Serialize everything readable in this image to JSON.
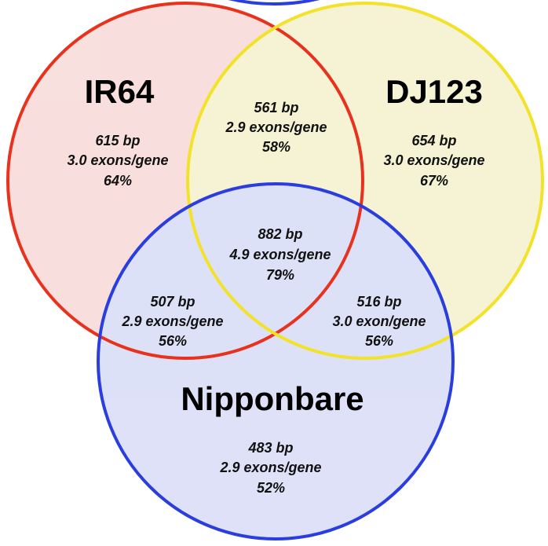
{
  "colors": {
    "ir64_stroke": "#e8321e",
    "ir64_fill": "#f3c6c2",
    "dj123_stroke": "#f2e22a",
    "dj123_fill": "#eeeab0",
    "nipponbare_stroke": "#2a3ee0",
    "nipponbare_fill": "#c3c9f1"
  },
  "sets": {
    "ir64": "IR64",
    "dj123": "DJ123",
    "nipponbare": "Nipponbare"
  },
  "regions": {
    "ir64_only": {
      "length": "615 bp",
      "exons": "3.0 exons/gene",
      "percent": "64%"
    },
    "dj123_only": {
      "length": "654 bp",
      "exons": "3.0 exons/gene",
      "percent": "67%"
    },
    "nipponbare_only": {
      "length": "483 bp",
      "exons": "2.9 exons/gene",
      "percent": "52%"
    },
    "ir64_dj123": {
      "length": "561 bp",
      "exons": "2.9 exons/gene",
      "percent": "58%"
    },
    "ir64_nipponbare": {
      "length": "507 bp",
      "exons": "2.9 exons/gene",
      "percent": "56%"
    },
    "dj123_nipponbare": {
      "length": "516 bp",
      "exons": "3.0 exon/gene",
      "percent": "56%"
    },
    "all_three": {
      "length": "882 bp",
      "exons": "4.9 exons/gene",
      "percent": "79%"
    }
  }
}
